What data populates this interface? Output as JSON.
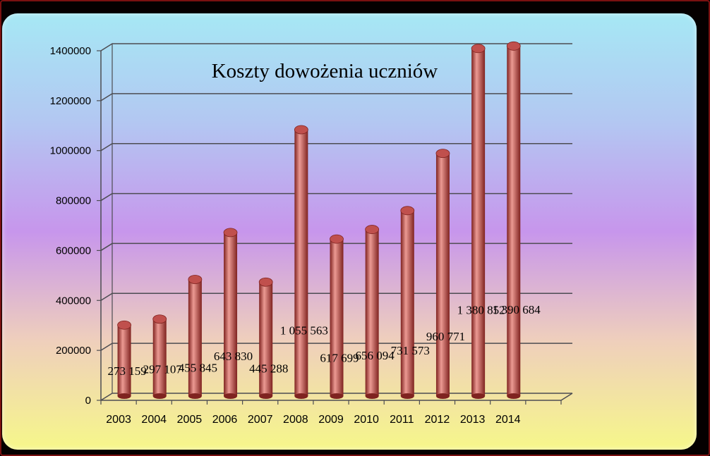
{
  "chart_data": {
    "type": "bar",
    "title": "Koszty dowożenia uczniów",
    "xlabel": "",
    "ylabel": "",
    "ylim": [
      0,
      1400000
    ],
    "yticks": [
      0,
      200000,
      400000,
      600000,
      800000,
      1000000,
      1200000,
      1400000
    ],
    "ytick_labels": [
      "0",
      "200000",
      "400000",
      "600000",
      "800000",
      "1000000",
      "1200000",
      "1400000"
    ],
    "grid": true,
    "categories": [
      "2003",
      "2004",
      "2005",
      "2006",
      "2007",
      "2008",
      "2009",
      "2010",
      "2011",
      "2012",
      "2013",
      "2014"
    ],
    "values": [
      273159,
      297107,
      455845,
      643830,
      445288,
      1055563,
      617699,
      656094,
      731573,
      960771,
      1380852,
      1390684
    ],
    "data_labels": [
      "273 159",
      "297 107",
      "455 845",
      "643 830",
      "445 288",
      "1 055 563",
      "617 699",
      "656 094",
      "731 573",
      "960 771",
      "1 380 852",
      "1 390 684"
    ],
    "colors": {
      "bar": "#c0504d",
      "bar_dark": "#7f2320",
      "bar_light": "#ec9a93",
      "grid": "#4d4d52"
    }
  }
}
